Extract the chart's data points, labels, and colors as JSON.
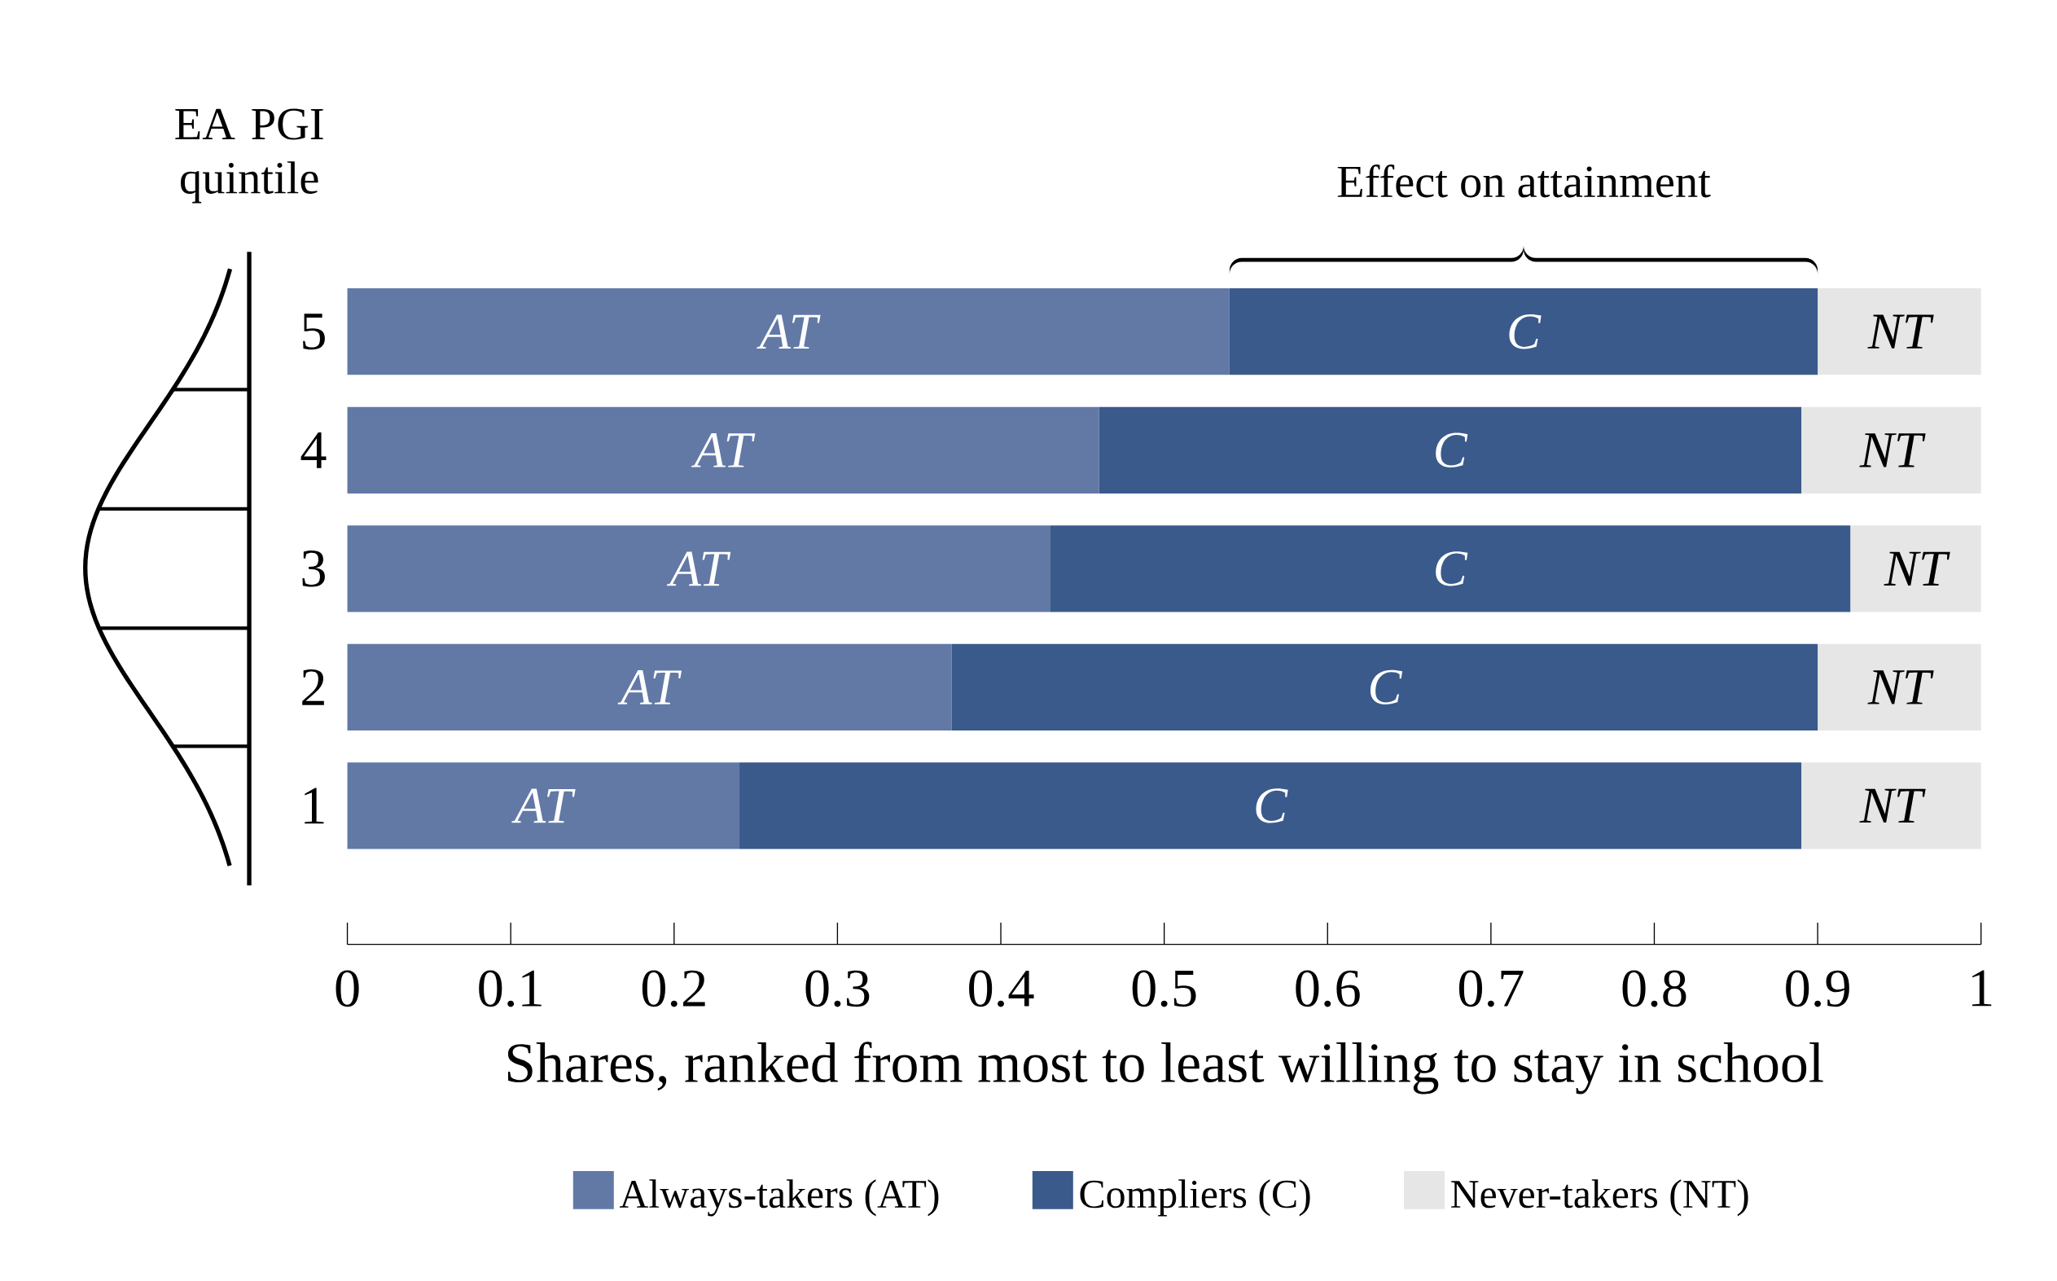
{
  "chart_data": {
    "type": "bar",
    "orientation": "horizontal",
    "stacked": true,
    "ylabel": "EA PGI quintile",
    "xlabel": "Shares, ranked from most to least willing to stay in school",
    "categories": [
      "5",
      "4",
      "3",
      "2",
      "1"
    ],
    "series": [
      {
        "name": "Always-takers (AT)",
        "color": "#6279a6",
        "values": [
          0.54,
          0.46,
          0.43,
          0.37,
          0.24
        ],
        "value_labels": [
          "AT",
          "AT",
          "AT",
          "AT",
          "AT"
        ]
      },
      {
        "name": "Compliers (C)",
        "color": "#3a5a8c",
        "values": [
          0.36,
          0.43,
          0.49,
          0.53,
          0.65
        ],
        "value_labels": [
          "C",
          "C",
          "C",
          "C",
          "C"
        ]
      },
      {
        "name": "Never-takers (NT)",
        "color": "#e6e6e6",
        "values": [
          0.1,
          0.11,
          0.08,
          0.1,
          0.11
        ],
        "value_labels": [
          "NT",
          "NT",
          "NT",
          "NT",
          "NT"
        ]
      }
    ],
    "xlim": [
      0,
      1
    ],
    "xticks": [
      0,
      0.1,
      0.2,
      0.3,
      0.4,
      0.5,
      0.6,
      0.7,
      0.8,
      0.9,
      1
    ],
    "annotations": [
      "Effect on attainment"
    ],
    "legend": "bottom"
  }
}
